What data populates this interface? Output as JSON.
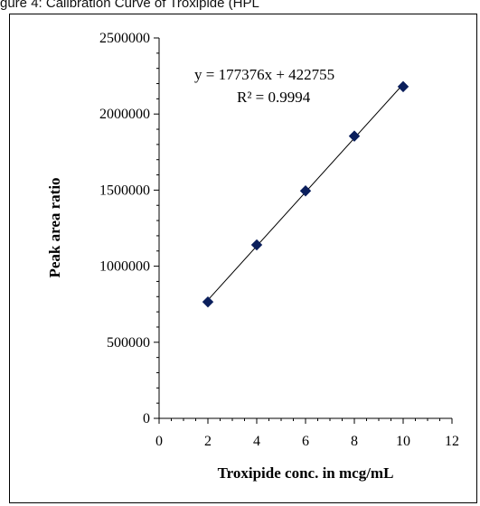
{
  "caption": "gure 4: Calibration Curve of Troxipide (HPL",
  "chart_data": {
    "type": "scatter",
    "title": "",
    "xlabel": "Troxipide conc. in mcg/mL",
    "ylabel": "Peak area ratio",
    "xlim": [
      0,
      12
    ],
    "ylim": [
      0,
      2500000
    ],
    "x_ticks": [
      0,
      2,
      4,
      6,
      8,
      10,
      12
    ],
    "y_ticks": [
      0,
      500000,
      1000000,
      1500000,
      2000000,
      2500000
    ],
    "grid": false,
    "series": [
      {
        "x": [
          2,
          4,
          6,
          8,
          10
        ],
        "y": [
          765000,
          1140000,
          1495000,
          1855000,
          2180000
        ]
      }
    ],
    "trendline": {
      "slope": 177376,
      "intercept": 422755,
      "x_range": [
        2,
        10
      ]
    },
    "annotations": {
      "equation": "y = 177376x  + 422755",
      "r2": "R² = 0.9994"
    },
    "colors": {
      "marker": "#0b1f5c",
      "line": "#000000"
    }
  }
}
